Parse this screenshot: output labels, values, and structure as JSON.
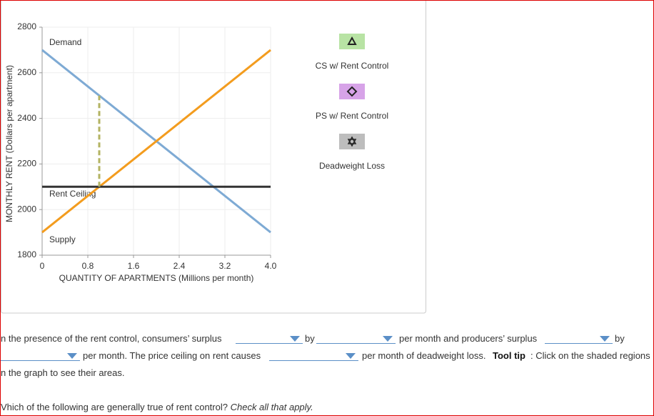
{
  "chart_data": {
    "type": "line",
    "x_label": "QUANTITY OF APARTMENTS (Millions per month)",
    "y_label": "MONTHLY RENT (Dollars per apartment)",
    "xlim": [
      0,
      4
    ],
    "ylim": [
      1800,
      2800
    ],
    "xticks": [
      0,
      0.8,
      1.6,
      2.4,
      3.2,
      {
        "value": 4,
        "label": "4.0"
      }
    ],
    "yticks": [
      1800,
      2000,
      2200,
      2400,
      2600,
      2800
    ],
    "grid": true,
    "series": [
      {
        "name": "Demand",
        "color": "#7eaad4",
        "x": [
          0,
          4
        ],
        "values": [
          2700,
          1900
        ]
      },
      {
        "name": "Supply",
        "color": "#f39c1e",
        "x": [
          0,
          4
        ],
        "values": [
          1900,
          2700
        ]
      },
      {
        "name": "Rent Ceiling",
        "color": "#333333",
        "x": [
          0,
          4
        ],
        "values": [
          2100,
          2100
        ]
      }
    ],
    "quantity_line": {
      "color": "#b3b362",
      "x": [
        1,
        1
      ],
      "values": [
        2100,
        2500
      ]
    }
  },
  "tools": [
    {
      "label": "CS w/ Rent Control",
      "color": "#b8e3a4"
    },
    {
      "label": "PS w/ Rent Control",
      "color": "#d7a3e8"
    },
    {
      "label": "Deadweight Loss",
      "color": "#bdbdbd"
    }
  ],
  "question": {
    "line1": [
      "n the presence of the rent control, consumers’ surplus",
      "by",
      "per month and producers’ surplus",
      "by"
    ],
    "line2": [
      "per month. The price ceiling on rent causes",
      "per month of deadweight loss.",
      "Tool tip",
      ": Click on the shaded regions"
    ],
    "line3": "n the graph to see their areas.",
    "line4": "Vhich of the following are generally true of rent control?",
    "line4_hint": "Check all that apply."
  }
}
